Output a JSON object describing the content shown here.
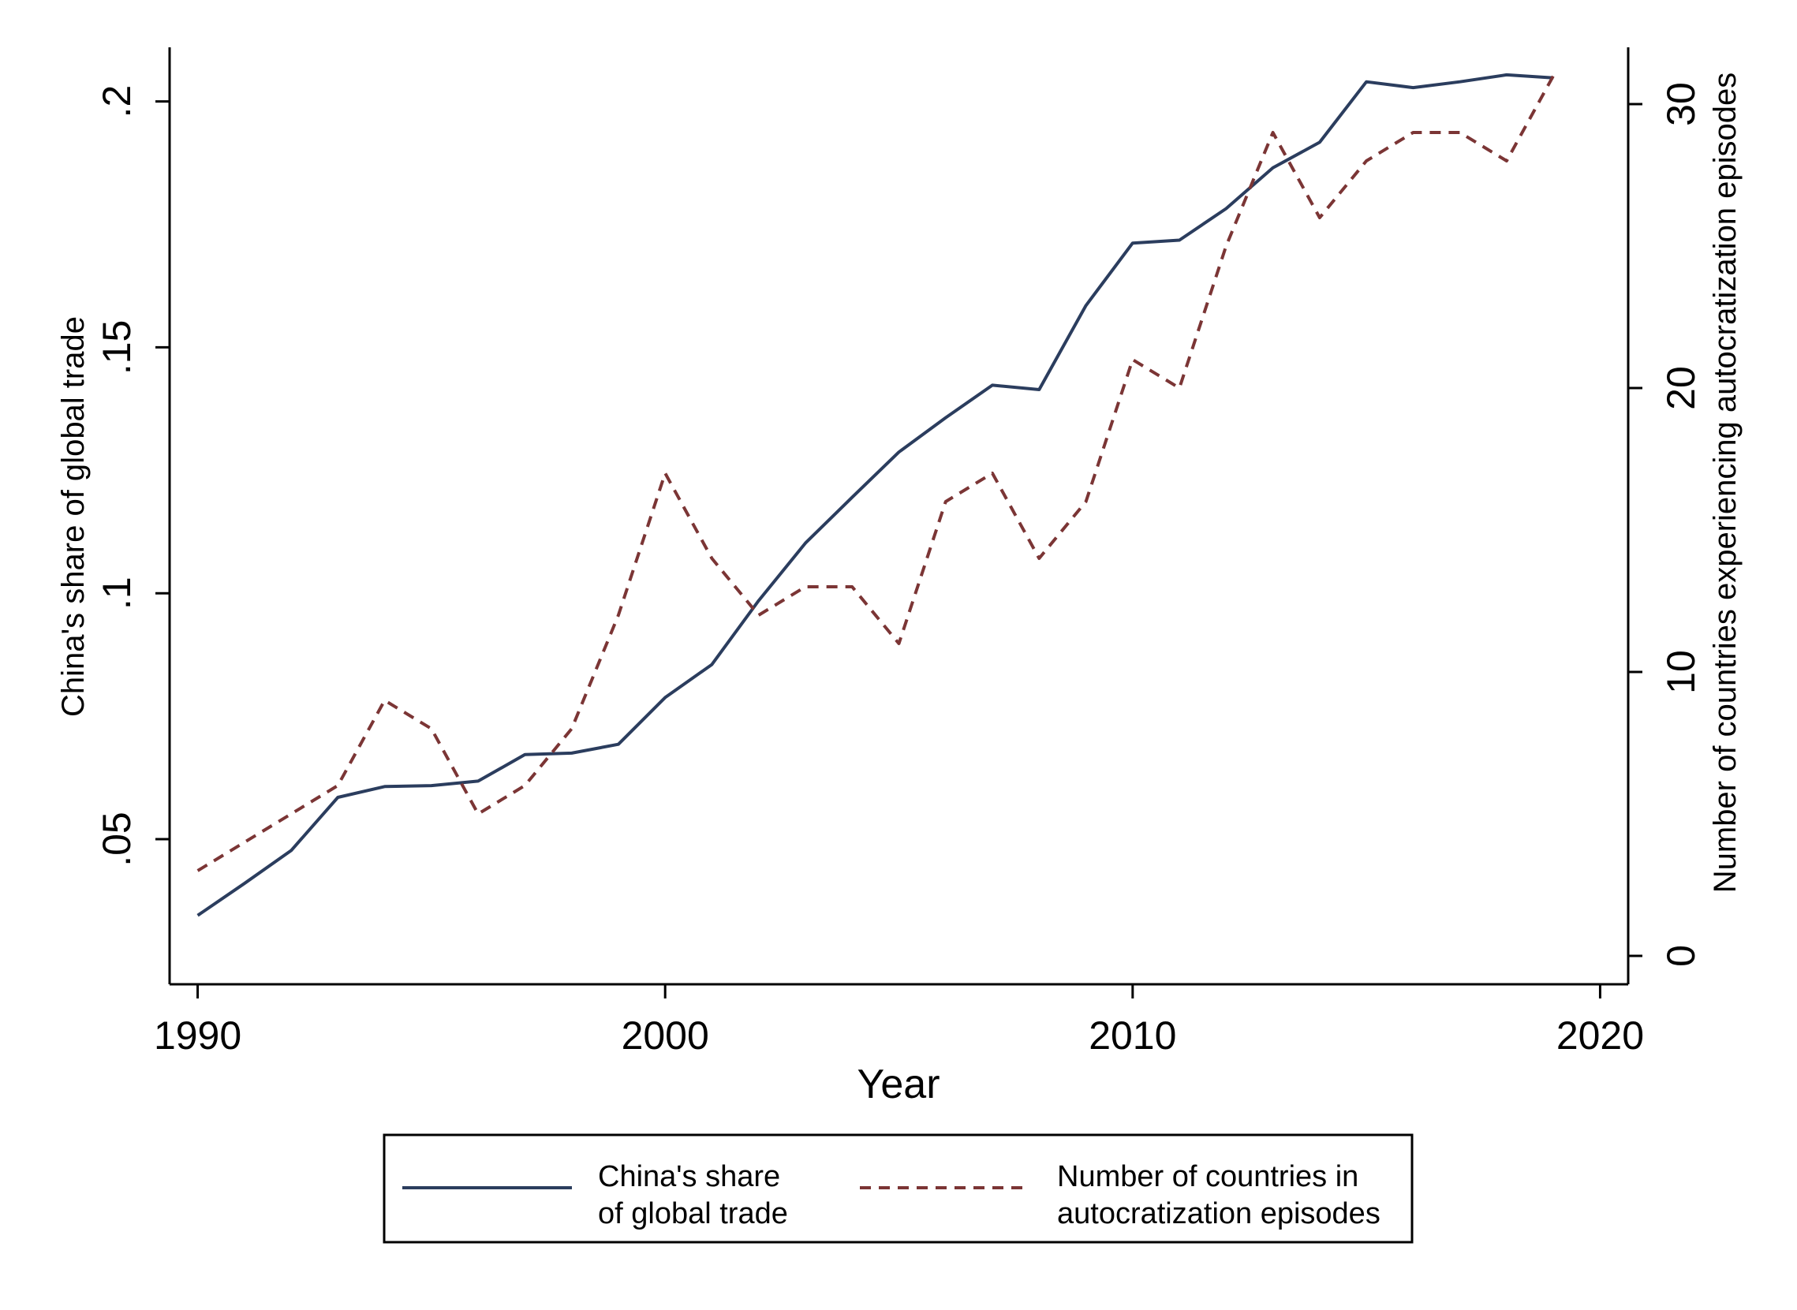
{
  "chart_data": {
    "type": "line",
    "xlabel": "Year",
    "ylabel_left": "China's share of global trade",
    "ylabel_right": "Number of countries experiencing autocratization episodes",
    "xlim": [
      1989.4,
      2020.6
    ],
    "ylim_left": [
      0.0205,
      0.211
    ],
    "ylim_right": [
      -1,
      32
    ],
    "x_ticks": [
      1990,
      2000,
      2010,
      2020
    ],
    "x_tick_labels": [
      "1990",
      "2000",
      "2010",
      "2020"
    ],
    "y_left_ticks": [
      0.05,
      0.1,
      0.15,
      0.2
    ],
    "y_left_tick_labels": [
      ".05",
      ".1",
      ".15",
      ".2"
    ],
    "y_right_ticks": [
      0,
      10,
      20,
      30
    ],
    "y_right_tick_labels": [
      "0",
      "10",
      "20",
      "30"
    ],
    "grid": false,
    "legend_position": "bottom",
    "series": [
      {
        "name": "China's share of global trade",
        "legend_lines": [
          "China's share",
          "of global trade"
        ],
        "axis": "left",
        "color": "#2b3d5e",
        "dash": "solid",
        "x": [
          1990,
          1991,
          1992,
          1993,
          1994,
          1995,
          1996,
          1997,
          1998,
          1999,
          2000,
          2001,
          2002,
          2003,
          2004,
          2005,
          2006,
          2007,
          2008,
          2009,
          2010,
          2011,
          2012,
          2013,
          2014,
          2015,
          2016,
          2017,
          2018,
          2019
        ],
        "values": [
          0.0345,
          0.041,
          0.0477,
          0.0585,
          0.0607,
          0.0609,
          0.0618,
          0.0672,
          0.0675,
          0.0693,
          0.0788,
          0.0855,
          0.0985,
          0.1102,
          0.1195,
          0.1287,
          0.1357,
          0.1423,
          0.1414,
          0.1585,
          0.1712,
          0.1718,
          0.1782,
          0.1865,
          0.1917,
          0.204,
          0.2028,
          0.204,
          0.2054,
          0.2048
        ]
      },
      {
        "name": "Number of countries in autocratization episodes",
        "legend_lines": [
          "Number of countries in",
          "autocratization episodes"
        ],
        "axis": "right",
        "color": "#7b3535",
        "dash": "dashed",
        "x": [
          1990,
          1991,
          1992,
          1993,
          1994,
          1995,
          1996,
          1997,
          1998,
          1999,
          2000,
          2001,
          2002,
          2003,
          2004,
          2005,
          2006,
          2007,
          2008,
          2009,
          2010,
          2011,
          2012,
          2013,
          2014,
          2015,
          2016,
          2017,
          2018,
          2019
        ],
        "values": [
          3,
          4,
          5,
          6,
          9,
          8,
          5,
          6,
          8,
          12,
          17,
          14,
          12,
          13,
          13,
          11,
          16,
          17,
          14,
          16,
          21,
          20,
          25,
          29,
          26,
          28,
          29,
          29,
          28,
          31
        ]
      }
    ]
  }
}
